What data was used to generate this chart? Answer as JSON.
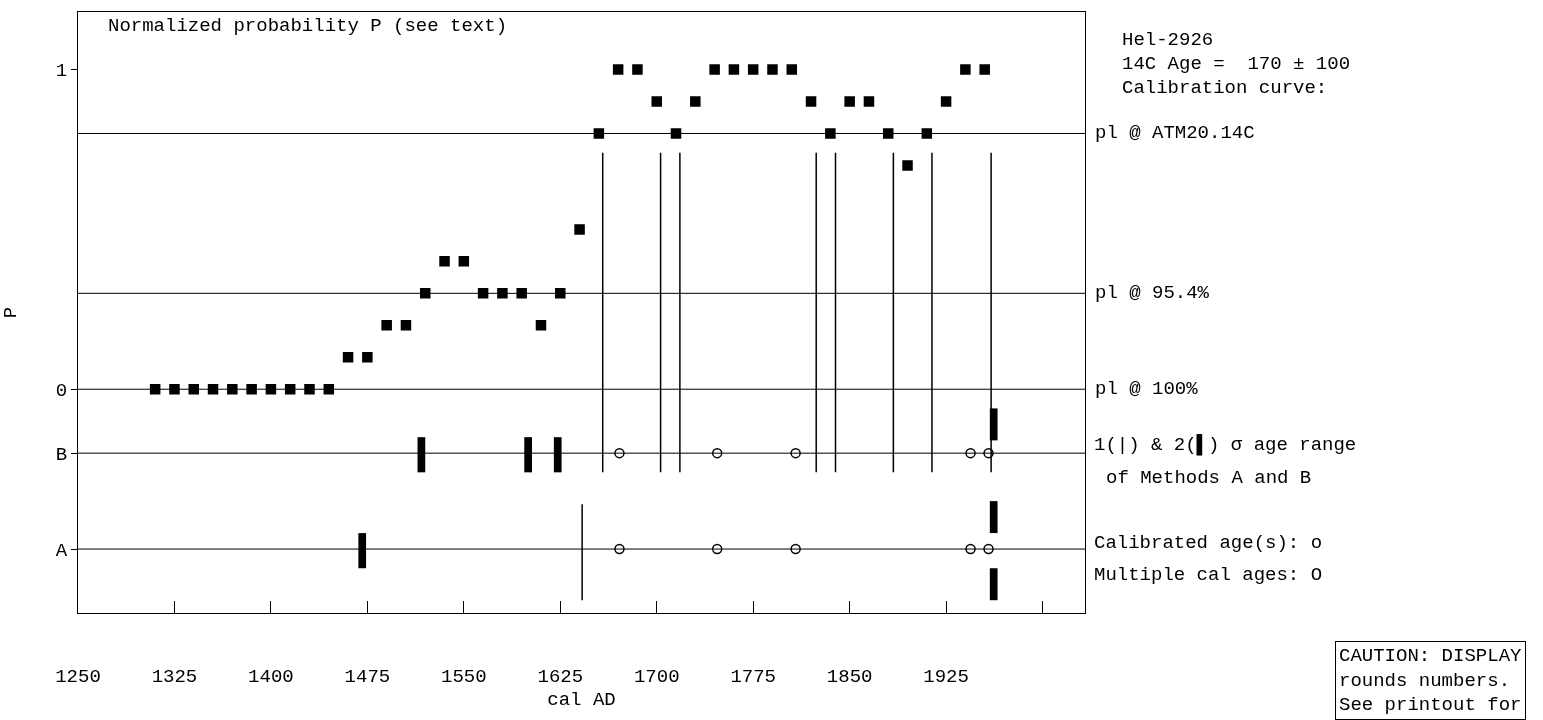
{
  "chart_data": {
    "type": "scatter",
    "title": "Normalized probability P (see text)",
    "xlabel": "cal AD",
    "ylabel": "P",
    "xlim": [
      1250,
      2033
    ],
    "ylim": [
      -0.7,
      1.18
    ],
    "xticks": [
      1250,
      1325,
      1400,
      1475,
      1550,
      1625,
      1700,
      1775,
      1850,
      1925,
      {
        "value": 2000,
        "label": null
      }
    ],
    "yticks": [
      {
        "value": -0.5,
        "label": "A"
      },
      {
        "value": -0.2,
        "label": "B"
      },
      0,
      1
    ],
    "grid": false,
    "series": [
      {
        "marker": "square",
        "color": "#000000",
        "x": [
          1310,
          1325,
          1340,
          1355,
          1370,
          1385,
          1400,
          1415,
          1430,
          1445,
          1460,
          1475,
          1490,
          1505,
          1520,
          1535,
          1550,
          1565,
          1580,
          1595,
          1610,
          1625,
          1640,
          1655,
          1670,
          1685,
          1700,
          1715,
          1730,
          1745,
          1760,
          1775,
          1790,
          1805,
          1820,
          1835,
          1850,
          1865,
          1880,
          1895,
          1910,
          1925,
          1940,
          1955
        ],
        "values": [
          0,
          0,
          0,
          0,
          0,
          0,
          0,
          0,
          0,
          0,
          0.1,
          0.1,
          0.2,
          0.2,
          0.3,
          0.4,
          0.4,
          0.3,
          0.3,
          0.3,
          0.2,
          0.3,
          0.5,
          0.8,
          1,
          1,
          0.9,
          0.8,
          0.9,
          1,
          1,
          1,
          1,
          1,
          0.9,
          0.8,
          0.9,
          0.9,
          0.8,
          0.7,
          0.8,
          0.9,
          1,
          1
        ]
      },
      {
        "type": "line",
        "line_style": "solid",
        "color": "#000000",
        "x": [
          1642,
          1642
        ],
        "values": [
          -0.36,
          -0.66
        ]
      },
      {
        "type": "line",
        "line_style": "solid",
        "color": "#000000",
        "x": [
          1658,
          1658
        ],
        "values": [
          0.74,
          -0.26
        ]
      },
      {
        "type": "line",
        "line_style": "solid",
        "color": "#000000",
        "x": [
          1703,
          1703
        ],
        "values": [
          0.74,
          -0.26
        ]
      },
      {
        "type": "line",
        "line_style": "solid",
        "color": "#000000",
        "x": [
          1718,
          1718
        ],
        "values": [
          0.74,
          -0.26
        ]
      },
      {
        "type": "line",
        "line_style": "solid",
        "color": "#000000",
        "x": [
          1824,
          1824
        ],
        "values": [
          0.74,
          -0.26
        ]
      },
      {
        "type": "line",
        "line_style": "solid",
        "color": "#000000",
        "x": [
          1839,
          1839
        ],
        "values": [
          0.74,
          -0.26
        ]
      },
      {
        "type": "line",
        "line_style": "solid",
        "color": "#000000",
        "x": [
          1884,
          1884
        ],
        "values": [
          0.74,
          -0.26
        ]
      },
      {
        "type": "line",
        "line_style": "solid",
        "color": "#000000",
        "x": [
          1914,
          1914
        ],
        "values": [
          0.74,
          -0.26
        ]
      },
      {
        "type": "line",
        "line_style": "solid",
        "color": "#000000",
        "x": [
          1960,
          1960
        ],
        "values": [
          0.74,
          -0.26
        ]
      },
      {
        "type": "bar",
        "color": "#000000",
        "x": [
          1471,
          1517,
          1600,
          1623,
          1962
        ],
        "base": [
          -0.56,
          -0.26,
          -0.26,
          -0.26,
          -0.16
        ],
        "values": [
          0.11,
          0.11,
          0.11,
          0.11,
          0.1
        ]
      },
      {
        "type": "bar",
        "color": "#000000",
        "x": [
          1962
        ],
        "base": [
          -0.45
        ],
        "values": [
          0.1
        ]
      },
      {
        "type": "bar",
        "color": "#000000",
        "x": [
          1962
        ],
        "base": [
          -0.66
        ],
        "values": [
          0.1
        ]
      },
      {
        "marker": "circle",
        "color": "#000000",
        "x": [
          1671,
          1747,
          1808,
          1944,
          1958,
          1671,
          1747,
          1808,
          1944,
          1958
        ],
        "values": [
          -0.2,
          -0.2,
          -0.2,
          -0.2,
          -0.2,
          -0.5,
          -0.5,
          -0.5,
          -0.5,
          -0.5
        ]
      }
    ],
    "ref_lines": [
      {
        "axis": "y",
        "value": 0.8,
        "label": "pl @ ATM20.14C"
      },
      {
        "axis": "y",
        "value": 0.3,
        "label": "pl @ 95.4%"
      },
      {
        "axis": "y",
        "value": 0,
        "label": "pl @ 100%"
      },
      {
        "axis": "y",
        "value": -0.2,
        "label": null
      },
      {
        "axis": "y",
        "value": -0.5,
        "label": null
      }
    ],
    "annotations": [
      "Hel-2926",
      "14C Age =  170 ± 100",
      "Calibration curve:",
      "1(|) & 2(▌) σ age range",
      "of Methods A and B",
      "Calibrated age(s): o",
      "Multiple cal ages: O",
      "CAUTION: DISPLAY\nrounds numbers.\nSee printout for"
    ]
  }
}
